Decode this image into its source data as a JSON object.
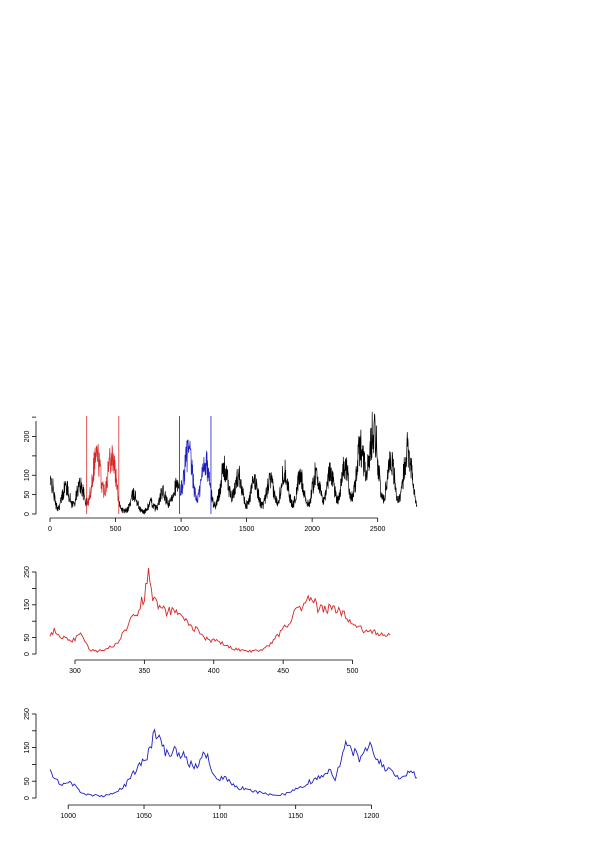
{
  "chart_data": [
    {
      "type": "line",
      "panel": "full-series",
      "xlim": [
        0,
        2800
      ],
      "ylim": [
        0,
        240
      ],
      "x_ticks": [
        0,
        500,
        1000,
        1500,
        2000,
        2500
      ],
      "y_ticks": [
        0,
        50,
        100,
        200
      ],
      "y_minor_ticks": [
        150,
        250
      ],
      "highlight_lines": [
        {
          "x": 280,
          "color": "#d62728"
        },
        {
          "x": 525,
          "color": "#d62728"
        },
        {
          "x": 988,
          "color": "#1f1fbf"
        },
        {
          "x": 1228,
          "color": "#1f1fbf"
        }
      ],
      "highlight_segments": [
        {
          "from": 280,
          "to": 525,
          "color": "#d62728"
        },
        {
          "from": 988,
          "to": 1228,
          "color": "#1f1fbf"
        }
      ],
      "series_color": "#000000",
      "peaks": [
        {
          "x": 10,
          "y": 75,
          "w": 18
        },
        {
          "x": 120,
          "y": 65,
          "w": 25
        },
        {
          "x": 230,
          "y": 70,
          "w": 25
        },
        {
          "x": 355,
          "y": 150,
          "w": 28
        },
        {
          "x": 470,
          "y": 150,
          "w": 28
        },
        {
          "x": 640,
          "y": 45,
          "w": 22
        },
        {
          "x": 770,
          "y": 25,
          "w": 18
        },
        {
          "x": 860,
          "y": 50,
          "w": 22
        },
        {
          "x": 960,
          "y": 65,
          "w": 25
        },
        {
          "x": 1055,
          "y": 155,
          "w": 28
        },
        {
          "x": 1185,
          "y": 130,
          "w": 28
        },
        {
          "x": 1330,
          "y": 110,
          "w": 28
        },
        {
          "x": 1440,
          "y": 95,
          "w": 25
        },
        {
          "x": 1560,
          "y": 80,
          "w": 25
        },
        {
          "x": 1680,
          "y": 80,
          "w": 25
        },
        {
          "x": 1790,
          "y": 105,
          "w": 25
        },
        {
          "x": 1910,
          "y": 90,
          "w": 25
        },
        {
          "x": 2030,
          "y": 100,
          "w": 25
        },
        {
          "x": 2140,
          "y": 105,
          "w": 25
        },
        {
          "x": 2250,
          "y": 120,
          "w": 25
        },
        {
          "x": 2370,
          "y": 165,
          "w": 28
        },
        {
          "x": 2470,
          "y": 215,
          "w": 28
        },
        {
          "x": 2600,
          "y": 140,
          "w": 25
        },
        {
          "x": 2730,
          "y": 165,
          "w": 28
        }
      ]
    },
    {
      "type": "line",
      "panel": "zoom-red",
      "xlim": [
        282,
        527
      ],
      "ylim": [
        0,
        250
      ],
      "x_ticks": [
        300,
        350,
        400,
        450,
        500
      ],
      "y_ticks": [
        0,
        50,
        150,
        250
      ],
      "y_minor_ticks": [
        100,
        200
      ],
      "series_color": "#d62728",
      "points": [
        [
          282,
          55
        ],
        [
          285,
          70
        ],
        [
          288,
          62
        ],
        [
          292,
          48
        ],
        [
          296,
          38
        ],
        [
          300,
          45
        ],
        [
          303,
          60
        ],
        [
          306,
          50
        ],
        [
          310,
          15
        ],
        [
          315,
          8
        ],
        [
          320,
          12
        ],
        [
          325,
          20
        ],
        [
          330,
          30
        ],
        [
          335,
          65
        ],
        [
          340,
          100
        ],
        [
          345,
          130
        ],
        [
          350,
          175
        ],
        [
          353,
          240
        ],
        [
          357,
          160
        ],
        [
          362,
          140
        ],
        [
          366,
          125
        ],
        [
          370,
          135
        ],
        [
          375,
          115
        ],
        [
          380,
          100
        ],
        [
          385,
          80
        ],
        [
          390,
          70
        ],
        [
          395,
          45
        ],
        [
          400,
          40
        ],
        [
          405,
          35
        ],
        [
          410,
          25
        ],
        [
          415,
          15
        ],
        [
          420,
          12
        ],
        [
          425,
          8
        ],
        [
          430,
          10
        ],
        [
          435,
          15
        ],
        [
          440,
          25
        ],
        [
          445,
          50
        ],
        [
          450,
          75
        ],
        [
          455,
          105
        ],
        [
          460,
          130
        ],
        [
          466,
          155
        ],
        [
          470,
          170
        ],
        [
          475,
          140
        ],
        [
          480,
          140
        ],
        [
          486,
          135
        ],
        [
          492,
          130
        ],
        [
          497,
          100
        ],
        [
          502,
          85
        ],
        [
          507,
          75
        ],
        [
          512,
          70
        ],
        [
          517,
          65
        ],
        [
          522,
          60
        ],
        [
          527,
          58
        ]
      ]
    },
    {
      "type": "line",
      "panel": "zoom-blue",
      "xlim": [
        988,
        1230
      ],
      "ylim": [
        0,
        250
      ],
      "x_ticks": [
        1000,
        1050,
        1100,
        1150,
        1200
      ],
      "y_ticks": [
        0,
        50,
        150,
        250
      ],
      "y_minor_ticks": [
        100,
        200
      ],
      "series_color": "#1f1fbf",
      "points": [
        [
          988,
          90
        ],
        [
          991,
          60
        ],
        [
          995,
          40
        ],
        [
          1000,
          45
        ],
        [
          1004,
          38
        ],
        [
          1008,
          20
        ],
        [
          1012,
          10
        ],
        [
          1017,
          8
        ],
        [
          1022,
          6
        ],
        [
          1027,
          10
        ],
        [
          1032,
          20
        ],
        [
          1037,
          35
        ],
        [
          1042,
          65
        ],
        [
          1046,
          90
        ],
        [
          1050,
          115
        ],
        [
          1054,
          140
        ],
        [
          1057,
          200
        ],
        [
          1061,
          160
        ],
        [
          1065,
          130
        ],
        [
          1070,
          145
        ],
        [
          1075,
          130
        ],
        [
          1080,
          100
        ],
        [
          1085,
          95
        ],
        [
          1090,
          145
        ],
        [
          1094,
          95
        ],
        [
          1098,
          55
        ],
        [
          1103,
          60
        ],
        [
          1108,
          45
        ],
        [
          1113,
          30
        ],
        [
          1118,
          25
        ],
        [
          1123,
          20
        ],
        [
          1128,
          15
        ],
        [
          1133,
          10
        ],
        [
          1138,
          8
        ],
        [
          1143,
          12
        ],
        [
          1148,
          20
        ],
        [
          1153,
          30
        ],
        [
          1158,
          45
        ],
        [
          1163,
          55
        ],
        [
          1168,
          65
        ],
        [
          1172,
          80
        ],
        [
          1176,
          60
        ],
        [
          1180,
          110
        ],
        [
          1184,
          170
        ],
        [
          1188,
          140
        ],
        [
          1192,
          120
        ],
        [
          1196,
          135
        ],
        [
          1200,
          155
        ],
        [
          1204,
          115
        ],
        [
          1208,
          95
        ],
        [
          1213,
          75
        ],
        [
          1218,
          65
        ],
        [
          1222,
          60
        ],
        [
          1226,
          90
        ],
        [
          1230,
          60
        ]
      ]
    }
  ]
}
